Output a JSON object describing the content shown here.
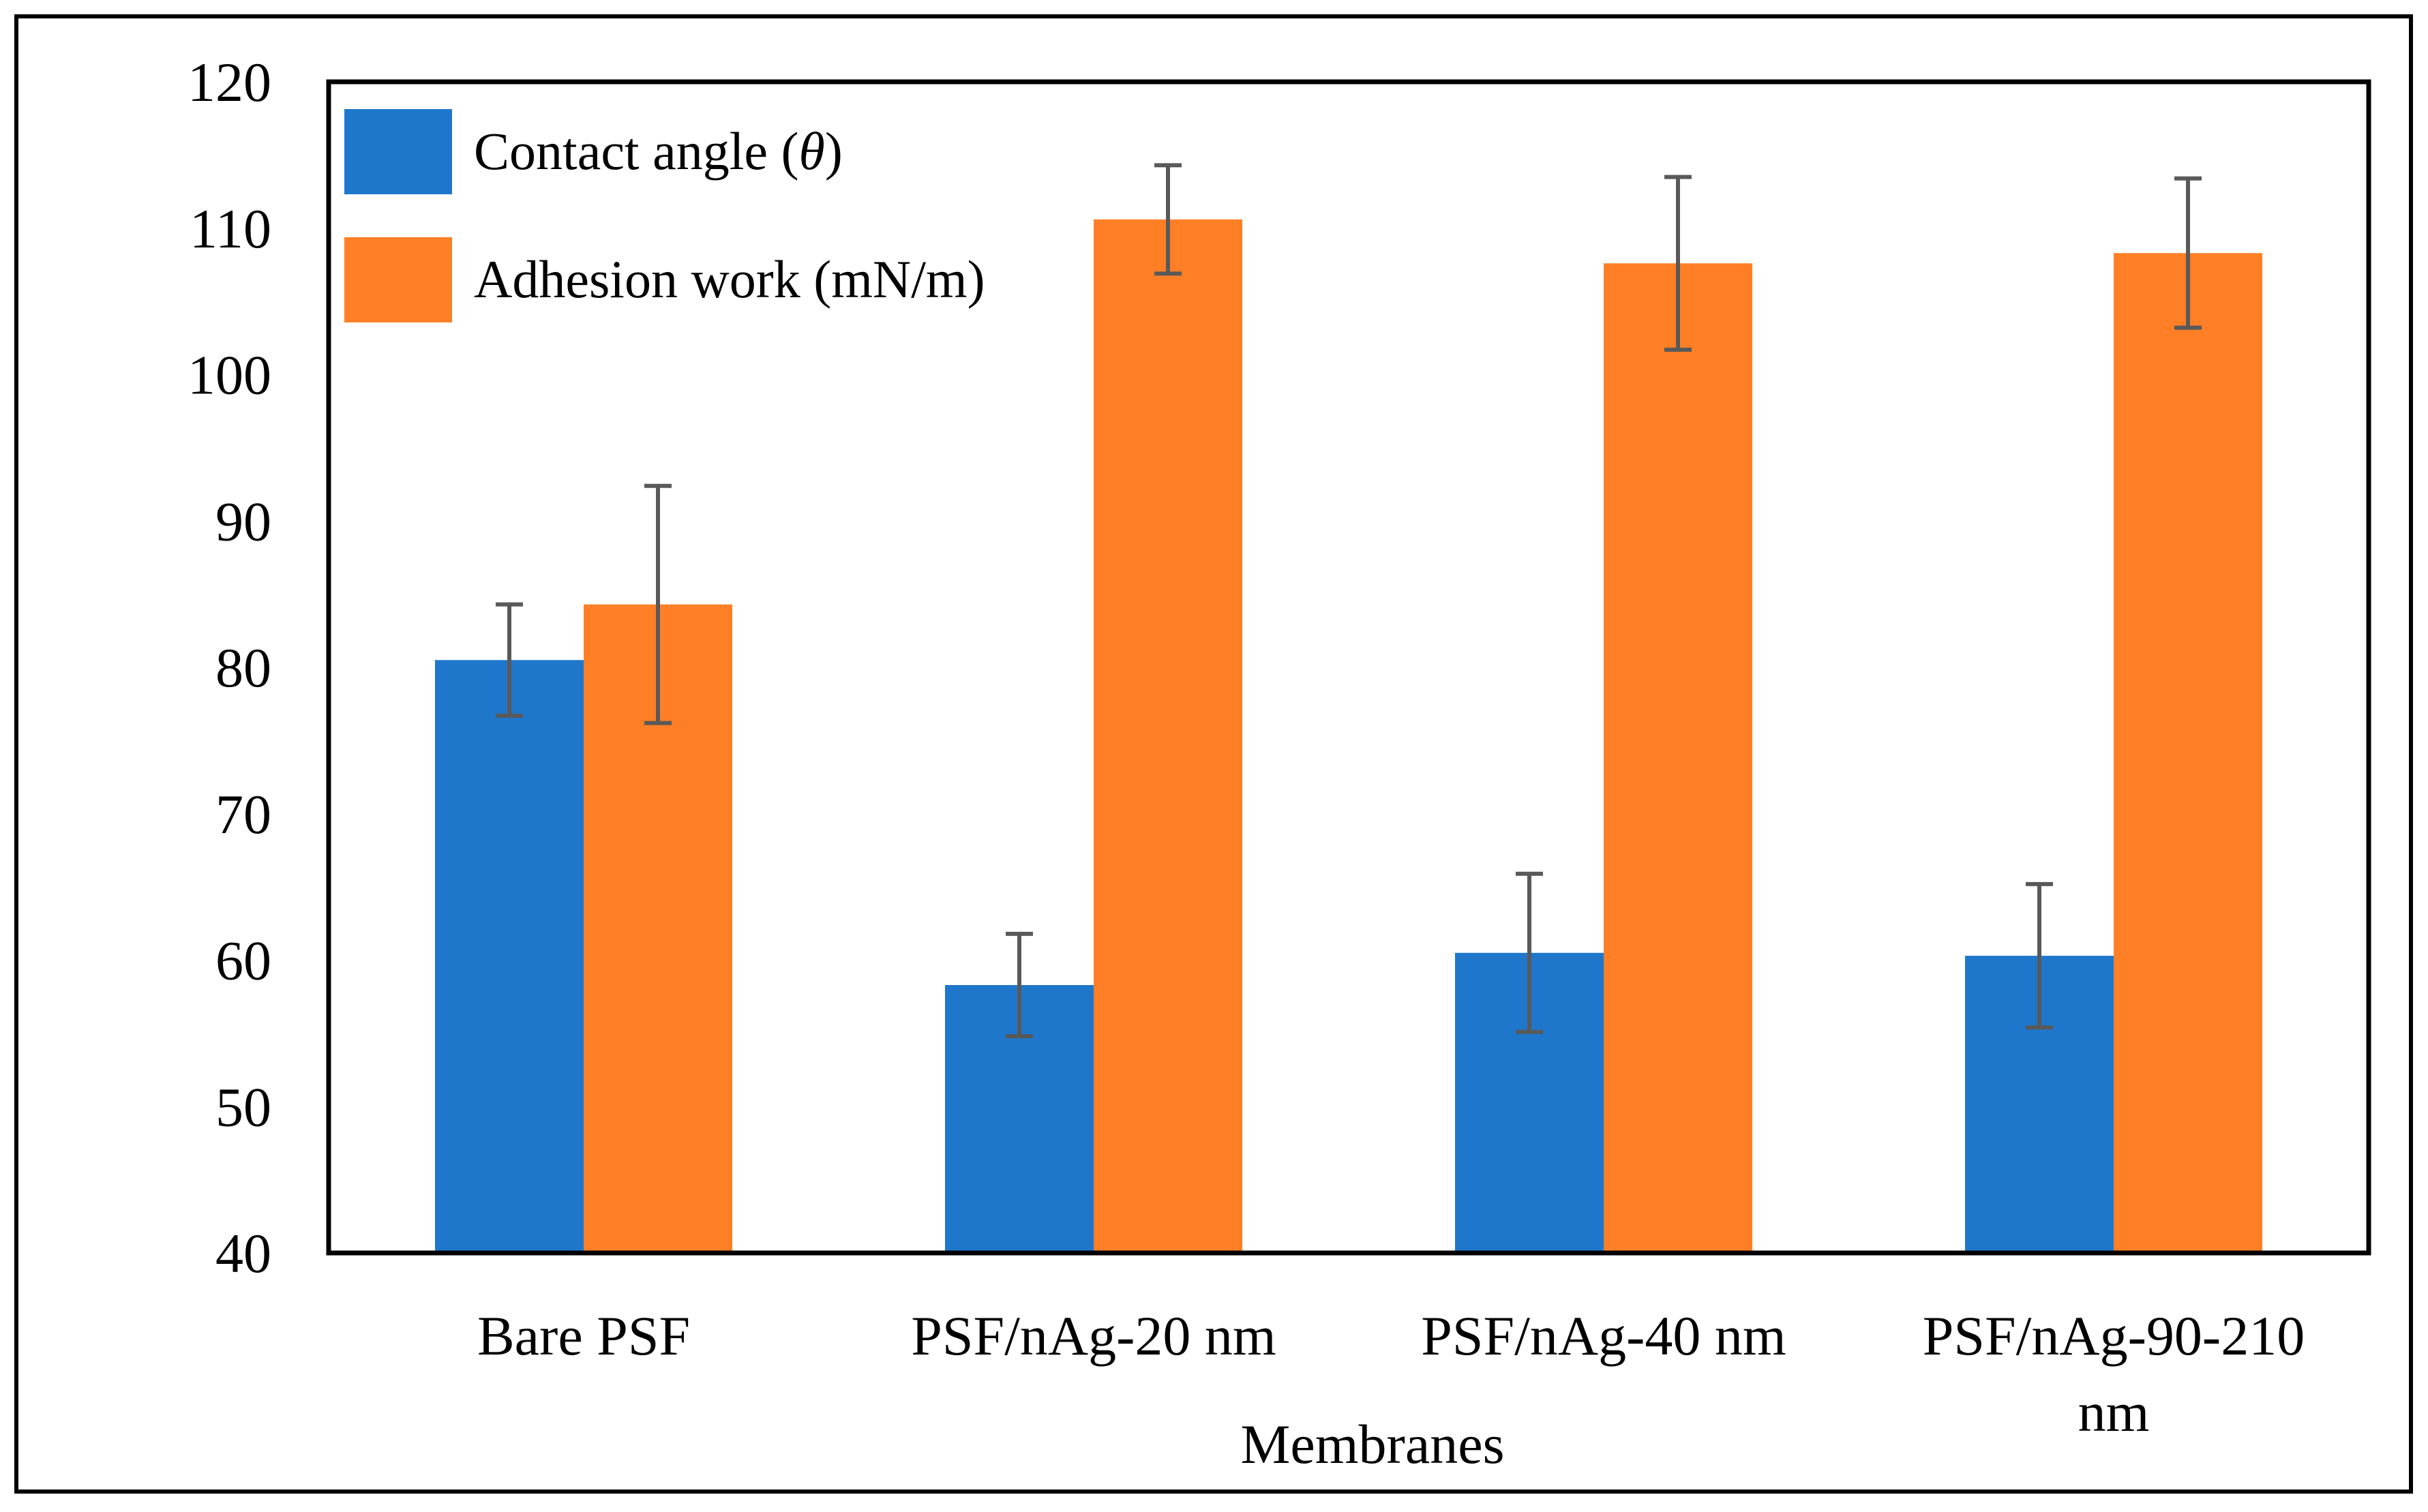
{
  "chart_data": {
    "type": "bar",
    "title": "",
    "xlabel": "Membranes",
    "ylabel": "",
    "ylim": [
      40,
      120
    ],
    "yticks": [
      40,
      50,
      60,
      70,
      80,
      90,
      100,
      110,
      120
    ],
    "grid": false,
    "legend_position": "top-left",
    "categories": [
      [
        "Bare PSF"
      ],
      [
        "PSF/nAg-20 nm"
      ],
      [
        "PSF/nAg-40 nm"
      ],
      [
        "PSF/nAg-90-210",
        "nm"
      ]
    ],
    "series": [
      {
        "name": "Contact angle (θ)",
        "label_prefix": "Contact angle (",
        "label_symbol": "θ",
        "label_suffix": ")",
        "color": "#1f77cc",
        "values": [
          80.5,
          58.3,
          60.5,
          60.3
        ],
        "errors": [
          3.8,
          3.5,
          5.4,
          4.9
        ]
      },
      {
        "name": "Adhesion work (mN/m)",
        "label_prefix": "Adhesion work (mN/m)",
        "label_symbol": "",
        "label_suffix": "",
        "color": "#ff7f27",
        "values": [
          84.3,
          110.6,
          107.6,
          108.3
        ],
        "errors": [
          8.1,
          3.7,
          5.9,
          5.1
        ]
      }
    ],
    "error_bar_color": "#595959"
  }
}
